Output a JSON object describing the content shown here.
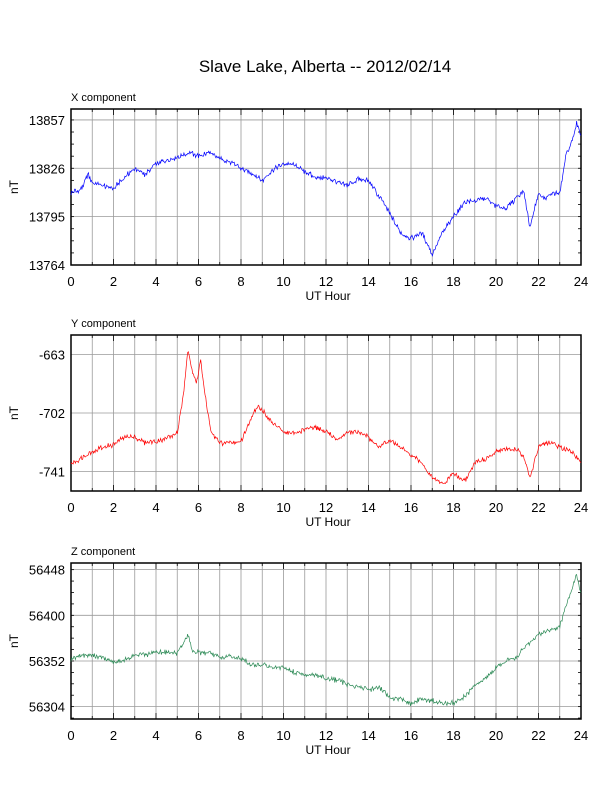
{
  "title": "Slave Lake, Alberta -- 2012/02/14",
  "chart_data": [
    {
      "type": "line",
      "panel_title": "X component",
      "xlabel": "UT Hour",
      "ylabel": "nT",
      "xlim": [
        0,
        24
      ],
      "ylim": [
        13764,
        13864
      ],
      "x_ticks": [
        0,
        2,
        4,
        6,
        8,
        10,
        12,
        14,
        16,
        18,
        20,
        22,
        24
      ],
      "y_ticks": [
        13764,
        13795,
        13826,
        13857
      ],
      "grid": true,
      "color": "#0000ff",
      "series": [
        {
          "x": [
            0,
            0.5,
            0.8,
            1.0,
            1.5,
            2.0,
            2.5,
            3.0,
            3.5,
            4.0,
            4.5,
            5.0,
            5.5,
            6.0,
            6.5,
            7.0,
            7.5,
            8.0,
            8.5,
            9.0,
            9.5,
            10.0,
            10.5,
            11.0,
            11.5,
            12.0,
            12.5,
            13.0,
            13.5,
            14.0,
            14.5,
            15.0,
            15.5,
            16.0,
            16.5,
            17.0,
            17.5,
            18.0,
            18.5,
            19.0,
            19.5,
            20.0,
            20.5,
            21.0,
            21.3,
            21.6,
            22.0,
            22.3,
            22.7,
            23.0,
            23.3,
            23.6,
            23.8,
            24.0
          ],
          "y": [
            13810,
            13813,
            13822,
            13817,
            13815,
            13813,
            13820,
            13826,
            13822,
            13829,
            13831,
            13833,
            13836,
            13834,
            13836,
            13832,
            13830,
            13826,
            13823,
            13818,
            13825,
            13829,
            13828,
            13824,
            13820,
            13820,
            13817,
            13815,
            13819,
            13818,
            13808,
            13797,
            13785,
            13781,
            13785,
            13771,
            13785,
            13795,
            13804,
            13805,
            13807,
            13802,
            13800,
            13808,
            13812,
            13788,
            13810,
            13806,
            13810,
            13810,
            13835,
            13844,
            13855,
            13846
          ]
        }
      ]
    },
    {
      "type": "line",
      "panel_title": "Y component",
      "xlabel": "UT Hour",
      "ylabel": "nT",
      "xlim": [
        0,
        24
      ],
      "ylim": [
        -754,
        -650
      ],
      "x_ticks": [
        0,
        2,
        4,
        6,
        8,
        10,
        12,
        14,
        16,
        18,
        20,
        22,
        24
      ],
      "y_ticks": [
        -663,
        -702,
        -741
      ],
      "grid": true,
      "color": "#ff0000",
      "series": [
        {
          "x": [
            0,
            0.5,
            1.0,
            1.5,
            2.0,
            2.5,
            3.0,
            3.5,
            4.0,
            4.5,
            5.0,
            5.3,
            5.5,
            5.7,
            5.9,
            6.1,
            6.3,
            6.6,
            7.0,
            7.5,
            8.0,
            8.5,
            8.8,
            9.0,
            9.5,
            10.0,
            10.5,
            11.0,
            11.5,
            12.0,
            12.5,
            13.0,
            13.5,
            14.0,
            14.5,
            15.0,
            15.5,
            16.0,
            16.5,
            17.0,
            17.5,
            18.0,
            18.5,
            19.0,
            19.5,
            20.0,
            20.5,
            21.0,
            21.3,
            21.6,
            22.0,
            22.3,
            22.7,
            23.0,
            23.5,
            24.0
          ],
          "y": [
            -736,
            -732,
            -728,
            -725,
            -723,
            -718,
            -718,
            -722,
            -721,
            -719,
            -715,
            -690,
            -658,
            -674,
            -682,
            -666,
            -690,
            -715,
            -722,
            -722,
            -721,
            -705,
            -697,
            -700,
            -709,
            -714,
            -716,
            -713,
            -712,
            -714,
            -720,
            -715,
            -715,
            -718,
            -725,
            -720,
            -725,
            -730,
            -735,
            -745,
            -750,
            -742,
            -748,
            -735,
            -733,
            -728,
            -726,
            -727,
            -730,
            -745,
            -725,
            -722,
            -722,
            -725,
            -727,
            -735
          ]
        }
      ]
    },
    {
      "type": "line",
      "panel_title": "Z component",
      "xlabel": "UT Hour",
      "ylabel": "nT",
      "xlim": [
        0,
        24
      ],
      "ylim": [
        56291,
        56455
      ],
      "x_ticks": [
        0,
        2,
        4,
        6,
        8,
        10,
        12,
        14,
        16,
        18,
        20,
        22,
        24
      ],
      "y_ticks": [
        56304,
        56352,
        56400,
        56448
      ],
      "grid": true,
      "color": "#2e8b57",
      "series": [
        {
          "x": [
            0,
            0.5,
            1.0,
            1.5,
            2.0,
            2.5,
            3.0,
            3.5,
            4.0,
            4.5,
            5.0,
            5.3,
            5.5,
            5.7,
            6.0,
            6.5,
            7.0,
            7.5,
            8.0,
            8.5,
            9.0,
            9.5,
            10.0,
            10.5,
            11.0,
            11.5,
            12.0,
            12.5,
            13.0,
            13.5,
            14.0,
            14.5,
            15.0,
            15.5,
            16.0,
            16.5,
            17.0,
            17.5,
            18.0,
            18.5,
            19.0,
            19.5,
            20.0,
            20.5,
            21.0,
            21.5,
            22.0,
            22.5,
            23.0,
            23.3,
            23.6,
            23.8,
            24.0
          ],
          "y": [
            56354,
            56358,
            56358,
            56355,
            56350,
            56353,
            56358,
            56359,
            56361,
            56362,
            56360,
            56370,
            56380,
            56363,
            56361,
            56360,
            56355,
            56357,
            56355,
            56348,
            56348,
            56345,
            56345,
            56340,
            56338,
            56337,
            56334,
            56332,
            56328,
            56325,
            56322,
            56324,
            56314,
            56312,
            56307,
            56312,
            56310,
            56307,
            56308,
            56314,
            56326,
            56334,
            56345,
            56352,
            56357,
            56370,
            56380,
            56384,
            56388,
            56410,
            56430,
            56442,
            56422
          ]
        }
      ]
    }
  ]
}
